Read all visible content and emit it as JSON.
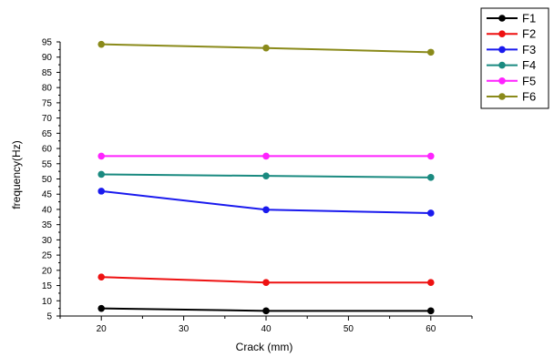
{
  "chart_data": {
    "type": "line",
    "xlabel": "Crack (mm)",
    "ylabel": "frequency(Hz)",
    "xlim": [
      15,
      65
    ],
    "ylim": [
      5,
      95
    ],
    "x_ticks": [
      20,
      30,
      40,
      50,
      60
    ],
    "y_ticks": [
      5,
      10,
      15,
      20,
      25,
      30,
      35,
      40,
      45,
      50,
      55,
      60,
      65,
      70,
      75,
      80,
      85,
      90,
      95
    ],
    "grid": false,
    "legend_position": "top-right",
    "x": [
      20,
      40,
      60
    ],
    "series": [
      {
        "name": "F1",
        "color": "#000000",
        "values": [
          7.5,
          6.7,
          6.7
        ]
      },
      {
        "name": "F2",
        "color": "#ee1111",
        "values": [
          17.8,
          16.0,
          16.0
        ]
      },
      {
        "name": "F3",
        "color": "#1a1aee",
        "values": [
          46.0,
          39.9,
          38.8
        ]
      },
      {
        "name": "F4",
        "color": "#1a8a80",
        "values": [
          51.5,
          51.0,
          50.5
        ]
      },
      {
        "name": "F5",
        "color": "#ff22ff",
        "values": [
          57.5,
          57.5,
          57.5
        ]
      },
      {
        "name": "F6",
        "color": "#8a8a1a",
        "values": [
          94.2,
          93.0,
          91.6
        ]
      }
    ]
  }
}
